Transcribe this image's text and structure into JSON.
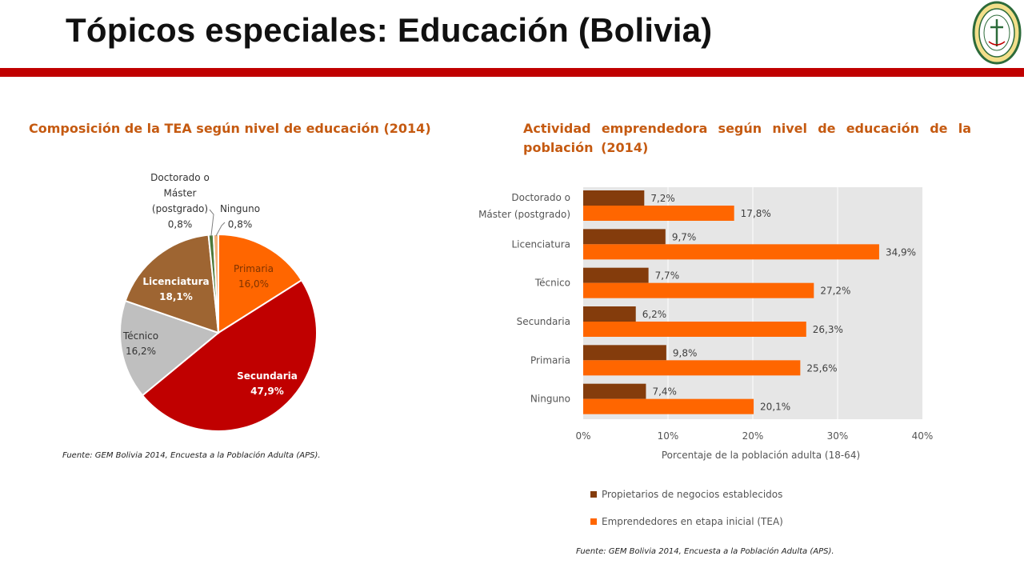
{
  "header": {
    "title": "Tópicos especiales: Educación (Bolivia)"
  },
  "pie_chart": {
    "title": "Composición de la TEA según nivel de educación (2014)",
    "source": "Fuente: GEM Bolivia 2014, Encuesta a la Población Adulta (APS)."
  },
  "bar_chart": {
    "title": "Actividad emprendedora según nivel de educación de la población (2014)",
    "source": "Fuente: GEM Bolivia 2014, Encuesta a la Población Adulta (APS)."
  },
  "chart_data": [
    {
      "type": "pie",
      "title": "Composición de la TEA según nivel de educación (2014)",
      "slices": [
        {
          "label": "Primaria",
          "value": 16.0,
          "display": "16,0%",
          "color": "#ff6600"
        },
        {
          "label": "Secundaria",
          "value": 47.9,
          "display": "47,9%",
          "color": "#c00000"
        },
        {
          "label": "Técnico",
          "value": 16.2,
          "display": "16,2%",
          "color": "#bfbfbf"
        },
        {
          "label": "Licenciatura",
          "value": 18.1,
          "display": "18,1%",
          "color": "#9e6532"
        },
        {
          "label": "Doctorado o Máster (postgrado)",
          "value": 0.8,
          "display": "0,8%",
          "color": "#4e7a3a"
        },
        {
          "label": "Ninguno",
          "value": 0.8,
          "display": "0,8%",
          "color": "#f2b27a"
        }
      ],
      "label_lines": {
        "Doctorado o Máster (postgrado)": [
          "Doctorado o",
          "Máster",
          "(postgrado)"
        ]
      }
    },
    {
      "type": "bar",
      "orientation": "horizontal",
      "title": "Actividad emprendedora según nivel de educación de la población (2014)",
      "categories": [
        "Doctorado o Máster (postgrado)",
        "Licenciatura",
        "Técnico",
        "Secundaria",
        "Primaria",
        "Ninguno"
      ],
      "category_lines": {
        "Doctorado o Máster (postgrado)": [
          "Doctorado o",
          "Máster (postgrado)"
        ]
      },
      "series": [
        {
          "name": "Propietarios de negocios establecidos",
          "color": "#843c0c",
          "values": [
            7.2,
            9.7,
            7.7,
            6.2,
            9.8,
            7.4
          ],
          "labels": [
            "7,2%",
            "9,7%",
            "7,7%",
            "6,2%",
            "9,8%",
            "7,4%"
          ]
        },
        {
          "name": "Emprendedores en etapa inicial (TEA)",
          "color": "#ff6600",
          "values": [
            17.8,
            34.9,
            27.2,
            26.3,
            25.6,
            20.1
          ],
          "labels": [
            "17,8%",
            "34,9%",
            "27,2%",
            "26,3%",
            "25,6%",
            "20,1%"
          ]
        }
      ],
      "xlabel": "Porcentaje de la población adulta (18-64)",
      "xlim": [
        0,
        40
      ],
      "xticks": [
        "0%",
        "10%",
        "20%",
        "30%",
        "40%"
      ],
      "plot_background": "#e6e6e6",
      "grid": true,
      "legend_position": "bottom"
    }
  ]
}
